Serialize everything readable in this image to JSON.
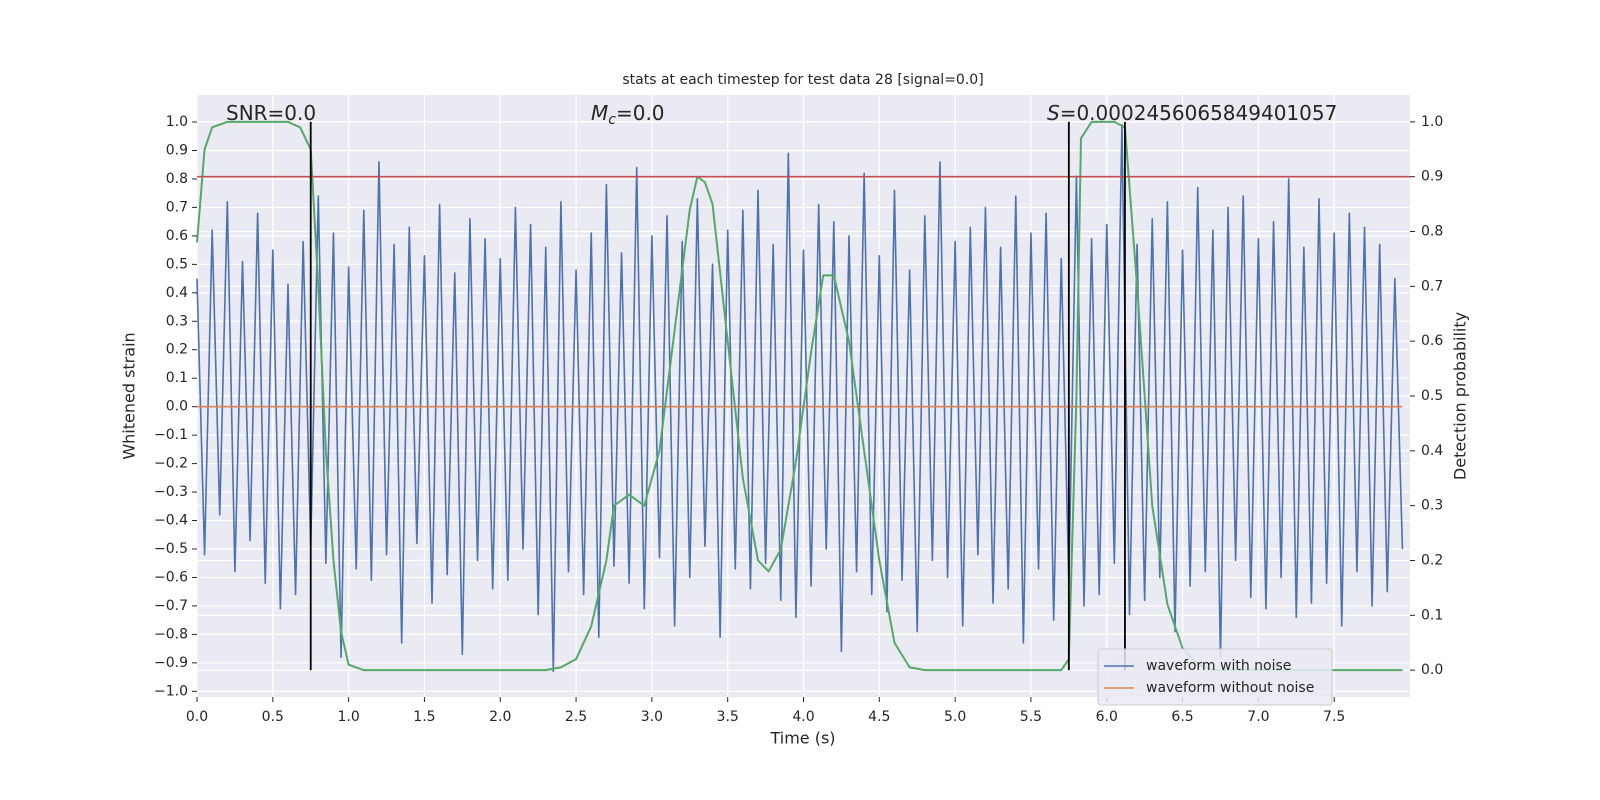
{
  "chart_data": {
    "type": "line",
    "title": "stats at each timestep for test data 28 [signal=0.0]",
    "x_label": "Time (s)",
    "y_label": "Whitened strain",
    "y2_label": "Detection probability",
    "grid": true,
    "legend_position": "lower right",
    "annotations": [
      {
        "text": "SNR=0.0"
      },
      {
        "symbol": "M",
        "subscript": "c",
        "text": "=0.0"
      },
      {
        "symbol": "S",
        "text": "=0.0002456065849401057"
      }
    ],
    "xlim": [
      0,
      8
    ],
    "ylim": [
      -1.02,
      1.095
    ],
    "y2lim": [
      -0.049,
      1.049
    ],
    "xticks": [
      {
        "value": 0,
        "label": "0.0"
      },
      {
        "value": 0.5,
        "label": "0.5"
      },
      {
        "value": 1,
        "label": "1.0"
      },
      {
        "value": 1.5,
        "label": "1.5"
      },
      {
        "value": 2,
        "label": "2.0"
      },
      {
        "value": 2.5,
        "label": "2.5"
      },
      {
        "value": 3,
        "label": "3.0"
      },
      {
        "value": 3.5,
        "label": "3.5"
      },
      {
        "value": 4,
        "label": "4.0"
      },
      {
        "value": 4.5,
        "label": "4.5"
      },
      {
        "value": 5,
        "label": "5.0"
      },
      {
        "value": 5.5,
        "label": "5.5"
      },
      {
        "value": 6,
        "label": "6.0"
      },
      {
        "value": 6.5,
        "label": "6.5"
      },
      {
        "value": 7,
        "label": "7.0"
      },
      {
        "value": 7.5,
        "label": "7.5"
      }
    ],
    "yticks": [
      {
        "value": -1,
        "label": "−1.0"
      },
      {
        "value": -0.9,
        "label": "−0.9"
      },
      {
        "value": -0.8,
        "label": "−0.8"
      },
      {
        "value": -0.7,
        "label": "−0.7"
      },
      {
        "value": -0.6,
        "label": "−0.6"
      },
      {
        "value": -0.5,
        "label": "−0.5"
      },
      {
        "value": -0.4,
        "label": "−0.4"
      },
      {
        "value": -0.3,
        "label": "−0.3"
      },
      {
        "value": -0.2,
        "label": "−0.2"
      },
      {
        "value": -0.1,
        "label": "−0.1"
      },
      {
        "value": 0,
        "label": "0.0"
      },
      {
        "value": 0.1,
        "label": "0.1"
      },
      {
        "value": 0.2,
        "label": "0.2"
      },
      {
        "value": 0.3,
        "label": "0.3"
      },
      {
        "value": 0.4,
        "label": "0.4"
      },
      {
        "value": 0.5,
        "label": "0.5"
      },
      {
        "value": 0.6,
        "label": "0.6"
      },
      {
        "value": 0.7,
        "label": "0.7"
      },
      {
        "value": 0.8,
        "label": "0.8"
      },
      {
        "value": 0.9,
        "label": "0.9"
      },
      {
        "value": 1,
        "label": "1.0"
      }
    ],
    "y2ticks": [
      {
        "value": 0,
        "label": "0.0"
      },
      {
        "value": 0.1,
        "label": "0.1"
      },
      {
        "value": 0.2,
        "label": "0.2"
      },
      {
        "value": 0.3,
        "label": "0.3"
      },
      {
        "value": 0.4,
        "label": "0.4"
      },
      {
        "value": 0.5,
        "label": "0.5"
      },
      {
        "value": 0.6,
        "label": "0.6"
      },
      {
        "value": 0.7,
        "label": "0.7"
      },
      {
        "value": 0.8,
        "label": "0.8"
      },
      {
        "value": 0.9,
        "label": "0.9"
      },
      {
        "value": 1,
        "label": "1.0"
      }
    ],
    "series": [
      {
        "name": "waveform with noise",
        "color": "#4c72b0",
        "x": [
          0,
          0.05,
          0.1,
          0.15,
          0.2,
          0.25,
          0.3,
          0.35,
          0.4,
          0.45,
          0.5,
          0.55,
          0.6,
          0.65,
          0.7,
          0.75,
          0.8,
          0.85,
          0.9,
          0.95,
          1,
          1.05,
          1.1,
          1.15,
          1.2,
          1.25,
          1.3,
          1.35,
          1.4,
          1.45,
          1.5,
          1.55,
          1.6,
          1.65,
          1.7,
          1.75,
          1.8,
          1.85,
          1.9,
          1.95,
          2,
          2.05,
          2.1,
          2.15,
          2.2,
          2.25,
          2.3,
          2.35,
          2.4,
          2.45,
          2.5,
          2.55,
          2.6,
          2.65,
          2.7,
          2.75,
          2.8,
          2.85,
          2.9,
          2.95,
          3,
          3.05,
          3.1,
          3.15,
          3.2,
          3.25,
          3.3,
          3.35,
          3.4,
          3.45,
          3.5,
          3.55,
          3.6,
          3.65,
          3.7,
          3.75,
          3.8,
          3.85,
          3.9,
          3.95,
          4,
          4.05,
          4.1,
          4.15,
          4.2,
          4.25,
          4.3,
          4.35,
          4.4,
          4.45,
          4.5,
          4.55,
          4.6,
          4.65,
          4.7,
          4.75,
          4.8,
          4.85,
          4.9,
          4.95,
          5,
          5.05,
          5.1,
          5.15,
          5.2,
          5.25,
          5.3,
          5.35,
          5.4,
          5.45,
          5.5,
          5.55,
          5.6,
          5.65,
          5.7,
          5.75,
          5.8,
          5.85,
          5.9,
          5.95,
          6,
          6.05,
          6.1,
          6.15,
          6.2,
          6.25,
          6.3,
          6.35,
          6.4,
          6.45,
          6.5,
          6.55,
          6.6,
          6.65,
          6.7,
          6.75,
          6.8,
          6.85,
          6.9,
          6.95,
          7,
          7.05,
          7.1,
          7.15,
          7.2,
          7.25,
          7.3,
          7.35,
          7.4,
          7.45,
          7.5,
          7.55,
          7.6,
          7.65,
          7.7,
          7.75,
          7.8,
          7.85,
          7.9,
          7.95
        ],
        "values": [
          0.45,
          -0.52,
          0.62,
          -0.38,
          0.72,
          -0.58,
          0.51,
          -0.47,
          0.68,
          -0.62,
          0.55,
          -0.71,
          0.43,
          -0.66,
          0.58,
          -0.49,
          0.74,
          -0.55,
          0.61,
          -0.88,
          0.49,
          -0.57,
          0.69,
          -0.61,
          0.86,
          -0.52,
          0.57,
          -0.83,
          0.63,
          -0.48,
          0.53,
          -0.69,
          0.71,
          -0.59,
          0.47,
          -0.87,
          0.66,
          -0.54,
          0.59,
          -0.64,
          0.52,
          -0.61,
          0.7,
          -0.5,
          0.64,
          -0.73,
          0.56,
          -0.93,
          0.72,
          -0.58,
          0.48,
          -0.66,
          0.61,
          -0.81,
          0.78,
          -0.56,
          0.54,
          -0.62,
          0.84,
          -0.71,
          0.6,
          -0.53,
          0.67,
          -0.77,
          0.58,
          -0.6,
          0.73,
          -0.49,
          0.5,
          -0.81,
          0.62,
          -0.57,
          0.69,
          -0.64,
          0.76,
          -0.55,
          0.57,
          -0.68,
          0.89,
          -0.74,
          0.55,
          -0.63,
          0.71,
          -0.5,
          0.65,
          -0.86,
          0.6,
          -0.58,
          0.82,
          -0.66,
          0.53,
          -0.72,
          0.76,
          -0.61,
          0.48,
          -0.79,
          0.67,
          -0.54,
          0.86,
          -0.6,
          0.58,
          -0.77,
          0.63,
          -0.52,
          0.7,
          -0.69,
          0.56,
          -0.64,
          0.74,
          -0.83,
          0.61,
          -0.57,
          0.68,
          -0.75,
          0.52,
          -0.62,
          0.81,
          -0.7,
          0.59,
          -0.66,
          0.64,
          -0.55,
          0.99,
          -0.73,
          0.57,
          -0.68,
          0.66,
          -0.6,
          0.72,
          -0.79,
          0.55,
          -0.63,
          0.77,
          -0.58,
          0.62,
          -0.88,
          0.7,
          -0.54,
          0.74,
          -0.67,
          0.59,
          -0.71,
          0.65,
          -0.6,
          0.8,
          -0.74,
          0.56,
          -0.69,
          0.73,
          -0.62,
          0.61,
          -0.77,
          0.68,
          -0.58,
          0.63,
          -0.7,
          0.57,
          -0.65,
          0.45,
          -0.5
        ]
      },
      {
        "name": "waveform without noise",
        "color": "#dd8452",
        "x": [
          0,
          7.95
        ],
        "values": [
          0,
          0
        ]
      },
      {
        "color": "#55a868",
        "axis": "y2",
        "x": [
          0,
          0.05,
          0.1,
          0.2,
          0.3,
          0.6,
          0.68,
          0.75,
          0.8,
          0.85,
          0.9,
          0.95,
          1,
          1.1,
          2.3,
          2.4,
          2.5,
          2.6,
          2.7,
          2.75,
          2.85,
          2.95,
          3.05,
          3.15,
          3.25,
          3.3,
          3.35,
          3.4,
          3.5,
          3.6,
          3.7,
          3.77,
          3.85,
          3.95,
          4.05,
          4.13,
          4.2,
          4.3,
          4.4,
          4.5,
          4.6,
          4.7,
          4.8,
          5.7,
          5.75,
          5.8,
          5.83,
          5.9,
          6.05,
          6.12,
          6.2,
          6.3,
          6.4,
          6.5,
          6.6,
          6.7,
          7.95
        ],
        "values": [
          0.78,
          0.95,
          0.99,
          1,
          1,
          1,
          0.99,
          0.95,
          0.7,
          0.4,
          0.2,
          0.07,
          0.01,
          0,
          0,
          0.005,
          0.02,
          0.08,
          0.2,
          0.3,
          0.32,
          0.3,
          0.4,
          0.62,
          0.84,
          0.9,
          0.89,
          0.85,
          0.6,
          0.35,
          0.2,
          0.18,
          0.22,
          0.38,
          0.58,
          0.72,
          0.72,
          0.6,
          0.4,
          0.2,
          0.05,
          0.005,
          0,
          0,
          0.02,
          0.5,
          0.97,
          1,
          1,
          0.99,
          0.7,
          0.3,
          0.12,
          0.04,
          0.01,
          0,
          0
        ]
      }
    ],
    "hlines": [
      {
        "y": 0.9,
        "axis": "y2",
        "color": "#c44e52"
      }
    ],
    "vlines": [
      {
        "x": 0.75,
        "ymin": 0,
        "ymax": 1,
        "axis": "y2",
        "color": "#000000"
      },
      {
        "x": 5.75,
        "ymin": 0,
        "ymax": 1,
        "axis": "y2",
        "color": "#000000"
      },
      {
        "x": 6.12,
        "ymin": 0,
        "ymax": 1,
        "axis": "y2",
        "color": "#000000"
      }
    ]
  }
}
